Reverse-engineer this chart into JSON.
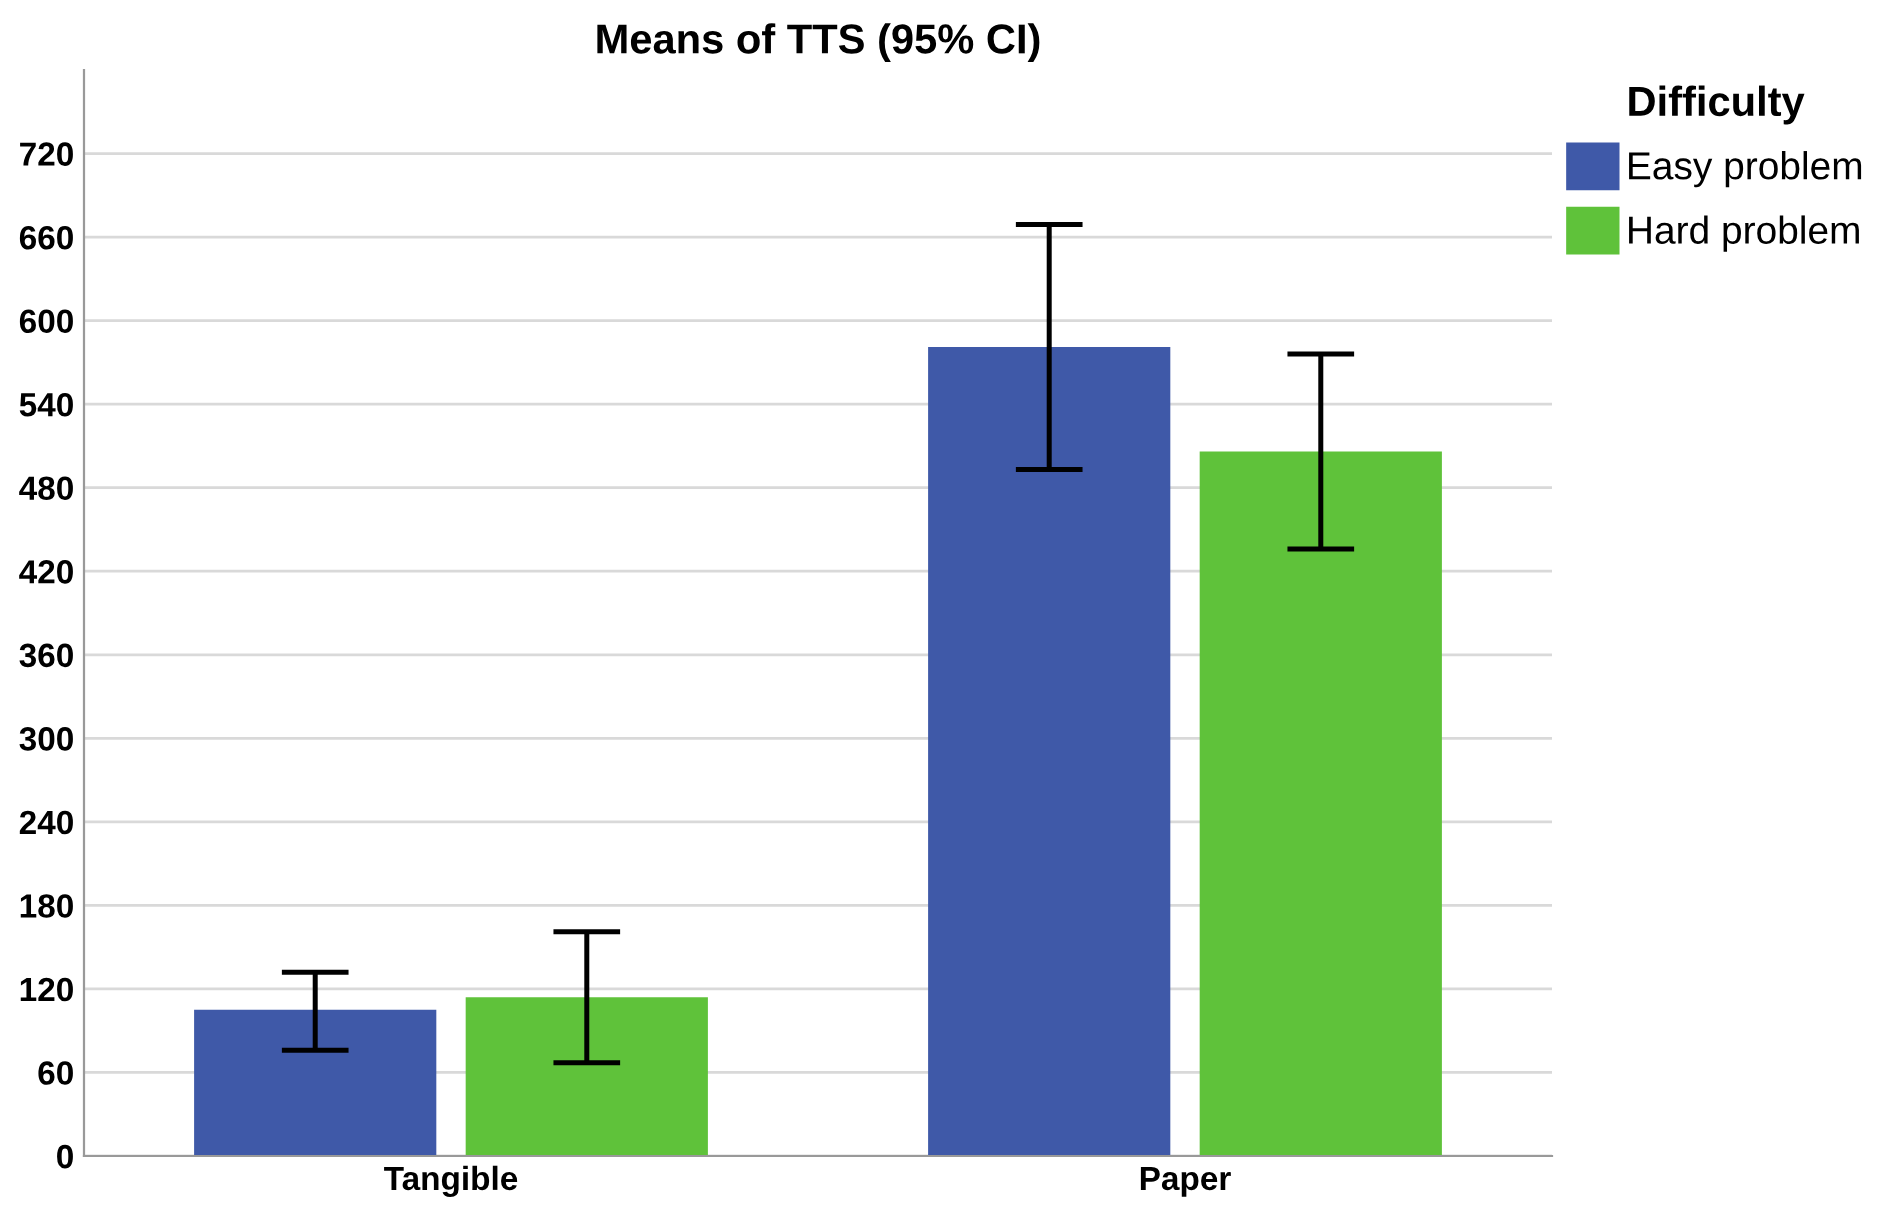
{
  "chart_data": {
    "type": "bar",
    "title": "Means of TTS (95% CI)",
    "legend_title": "Difficulty",
    "categories": [
      "Tangible",
      "Paper"
    ],
    "series": [
      {
        "name": "Easy problem",
        "color": "#3f59a8",
        "values": [
          105,
          581
        ],
        "errors": [
          [
            76,
            132
          ],
          [
            493,
            669
          ]
        ]
      },
      {
        "name": "Hard problem",
        "color": "#5fc23a",
        "values": [
          114,
          506
        ],
        "errors": [
          [
            67,
            161
          ],
          [
            436,
            576
          ]
        ]
      }
    ],
    "ylim": [
      0,
      780
    ],
    "yticks": [
      0,
      60,
      120,
      180,
      240,
      300,
      360,
      420,
      480,
      540,
      600,
      660,
      720
    ],
    "grid": "y",
    "legend": "top right"
  }
}
